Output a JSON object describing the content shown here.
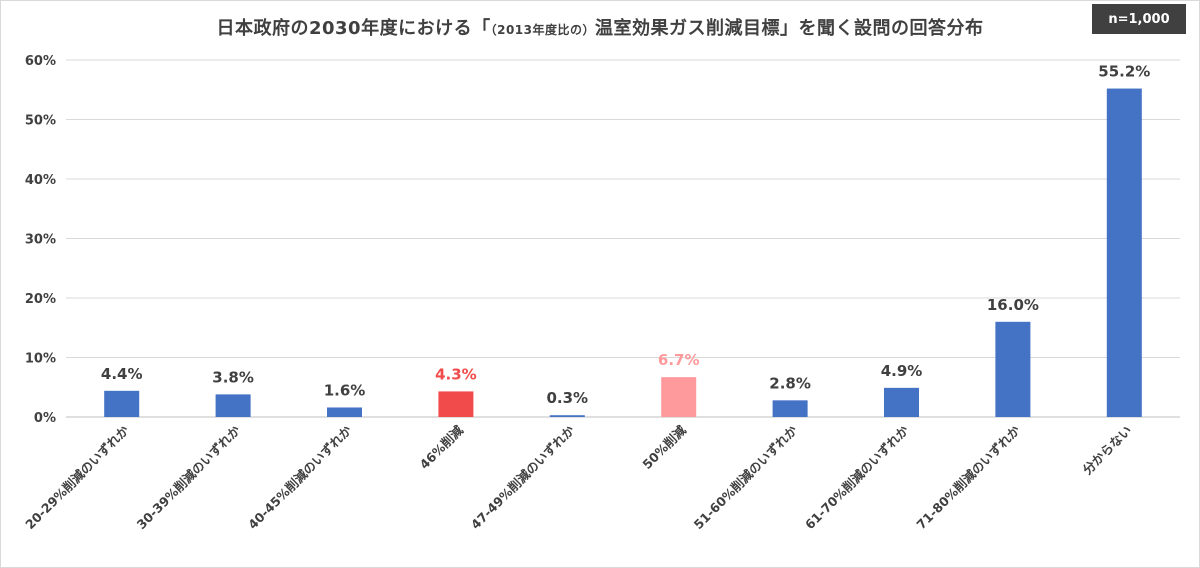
{
  "chart_data": {
    "type": "bar",
    "title_main_prefix": "日本政府の2030年度における「",
    "title_note": "（2013年度比の）",
    "title_main_suffix": "温室効果ガス削減目標」を聞く設問の回答分布",
    "sample_size": "n=1,000",
    "categories": [
      "20-29%削減のいずれか",
      "30-39%削減のいずれか",
      "40-45%削減のいずれか",
      "46%削減",
      "47-49%削減のいずれか",
      "50%削減",
      "51-60%削減のいずれか",
      "61-70%削減のいずれか",
      "71-80%削減のいずれか",
      "分からない"
    ],
    "values": [
      4.4,
      3.8,
      1.6,
      4.3,
      0.3,
      6.7,
      2.8,
      4.9,
      16.0,
      55.2
    ],
    "value_labels": [
      "4.4%",
      "3.8%",
      "1.6%",
      "4.3%",
      "0.3%",
      "6.7%",
      "2.8%",
      "4.9%",
      "16.0%",
      "55.2%"
    ],
    "bar_colors": [
      "#4472c4",
      "#4472c4",
      "#4472c4",
      "#f24b4b",
      "#4472c4",
      "#ff9a9c",
      "#4472c4",
      "#4472c4",
      "#4472c4",
      "#4472c4"
    ],
    "label_colors": [
      "#404040",
      "#404040",
      "#404040",
      "#f24b4b",
      "#404040",
      "#ff9a9c",
      "#404040",
      "#404040",
      "#404040",
      "#404040"
    ],
    "ylim": [
      0,
      60
    ],
    "yticks": [
      0,
      10,
      20,
      30,
      40,
      50,
      60
    ],
    "ytick_labels": [
      "0%",
      "10%",
      "20%",
      "30%",
      "40%",
      "50%",
      "60%"
    ],
    "grid": true,
    "legend": "none"
  }
}
